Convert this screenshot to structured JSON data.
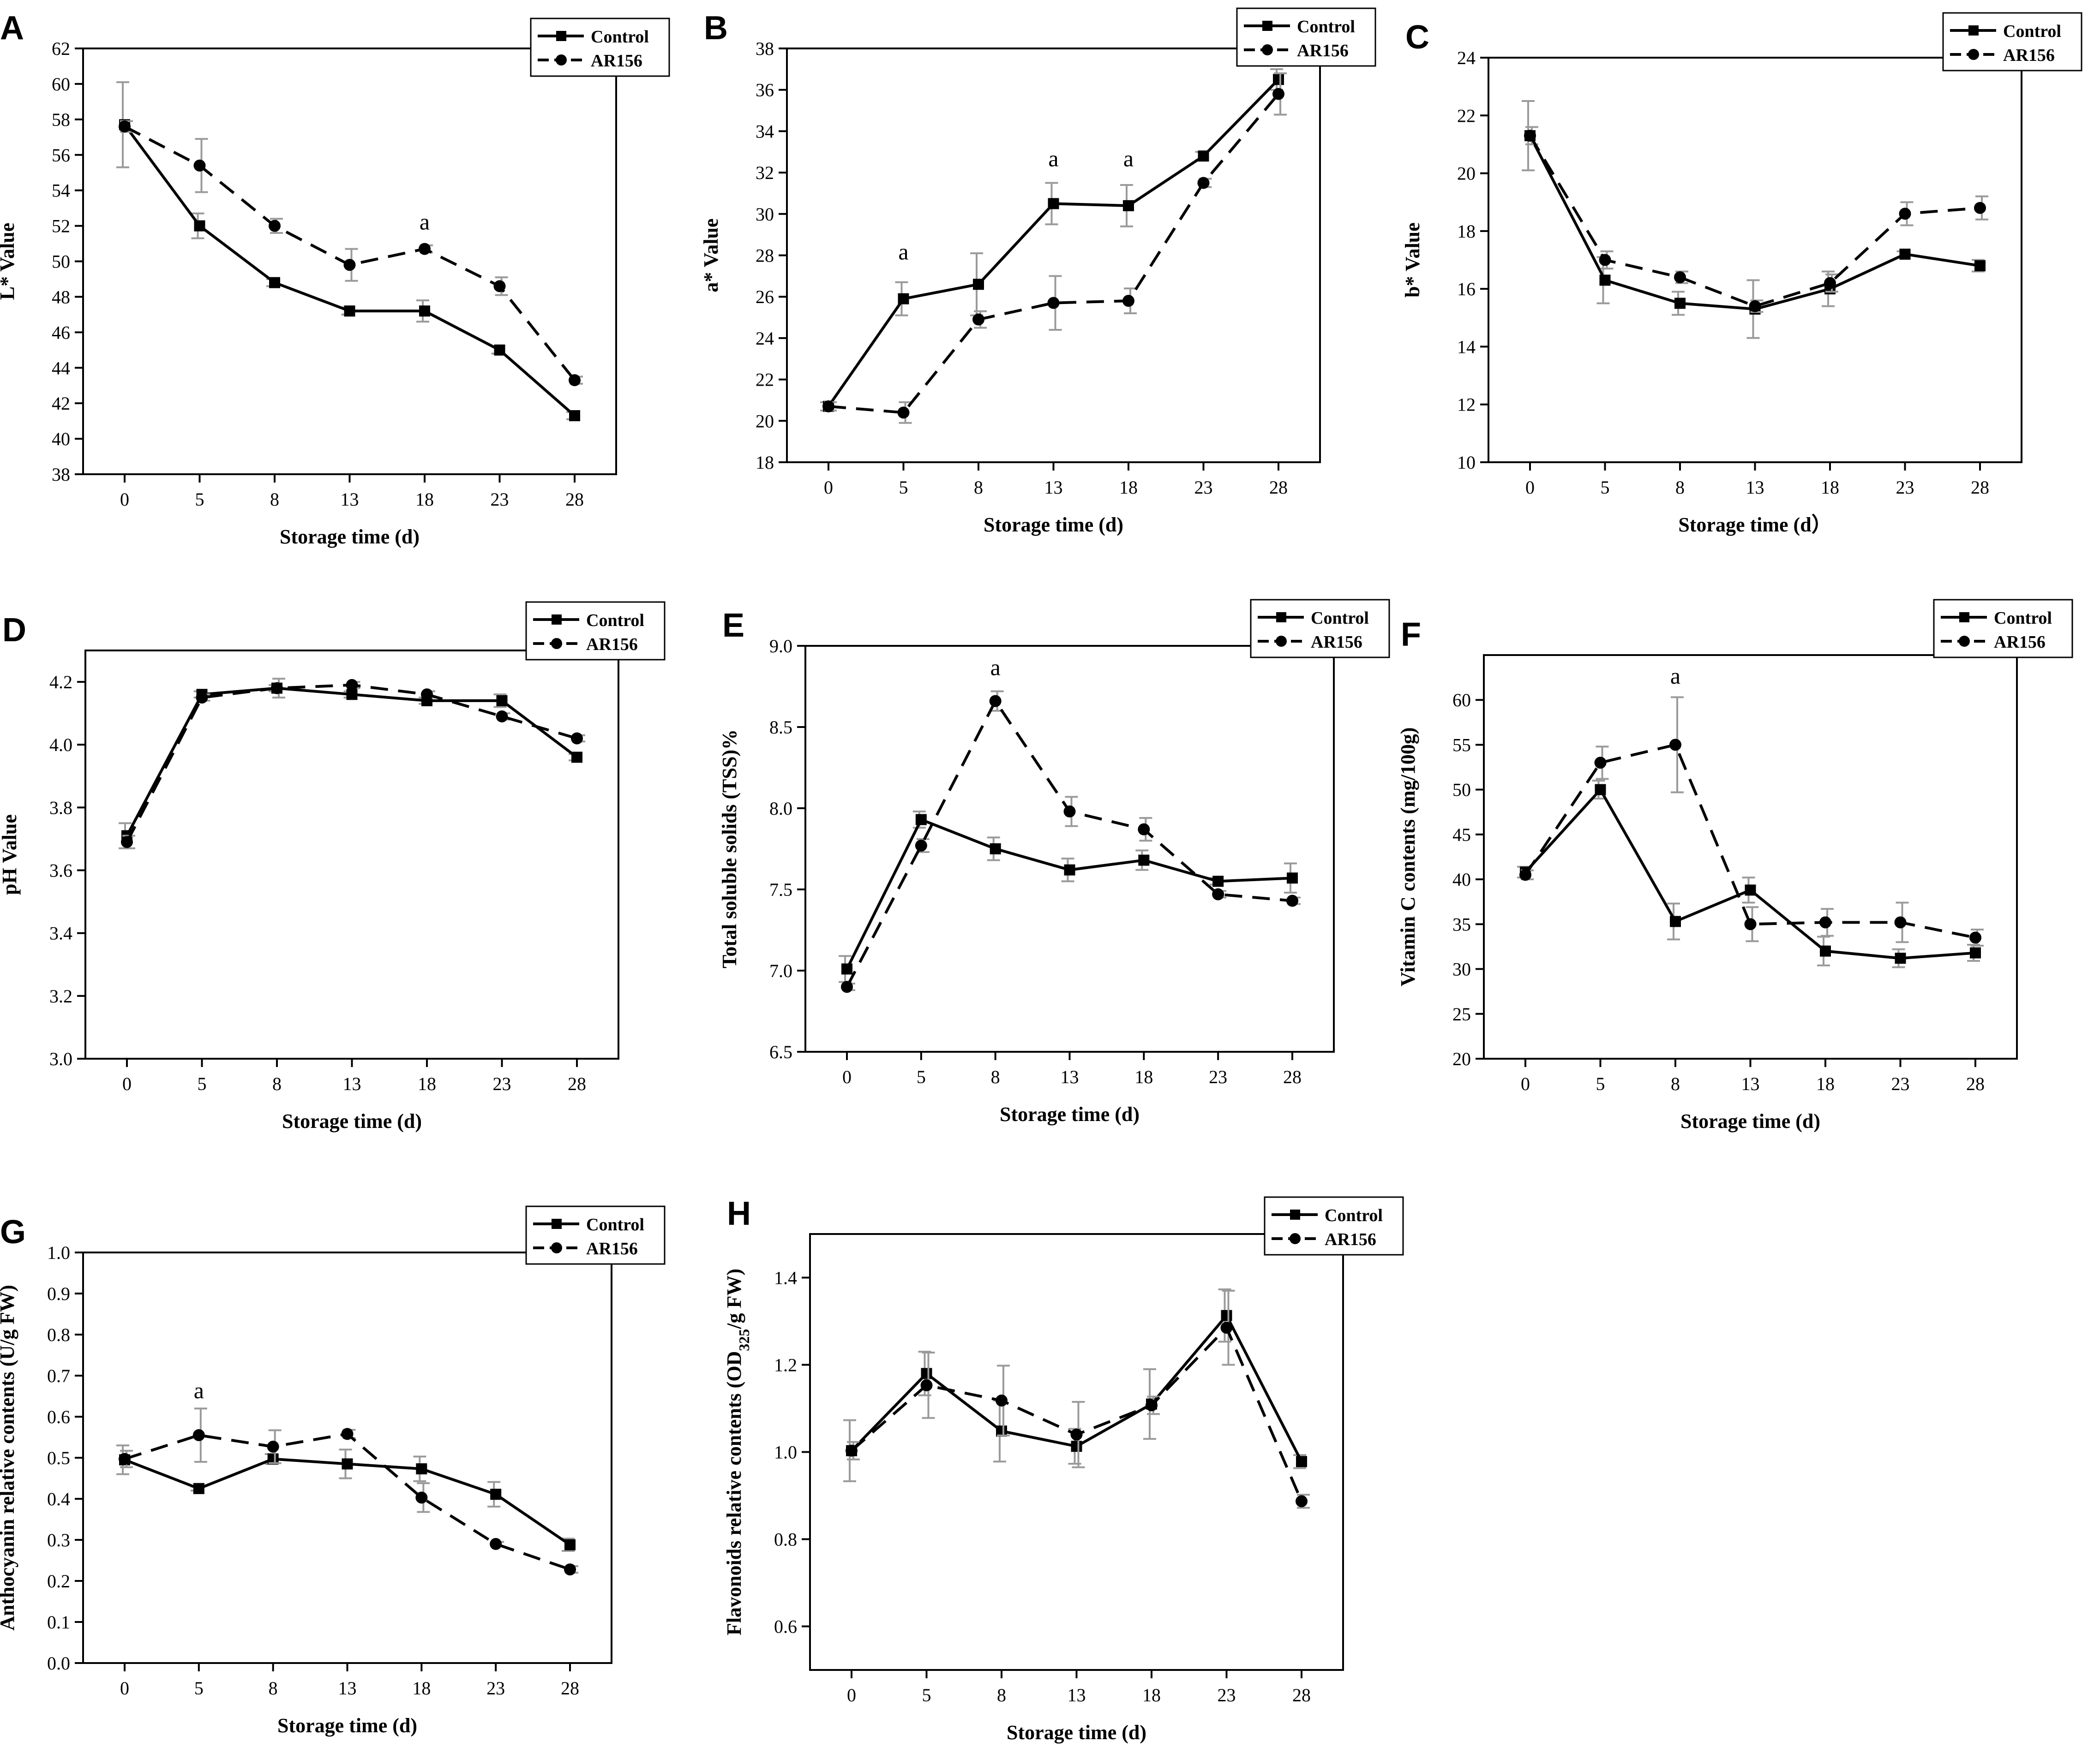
{
  "figure": {
    "legend_labels": [
      "Control",
      "AR156"
    ],
    "xlabel_default": "Storage time (d)",
    "x_ticks": [
      "0",
      "5",
      "8",
      "13",
      "18",
      "23",
      "28"
    ],
    "colors": {
      "line": "#000000",
      "error_bar": "#9a9a9a",
      "axis": "#000000",
      "background": "#ffffff"
    }
  },
  "chart_data": [
    {
      "panel": "A",
      "type": "line",
      "xlabel": "Storage time (d)",
      "ylabel": "L* Value",
      "categories": [
        "0",
        "5",
        "8",
        "13",
        "18",
        "23",
        "28"
      ],
      "ylim": [
        38,
        62
      ],
      "yticks": [
        38,
        40,
        42,
        44,
        46,
        48,
        50,
        52,
        54,
        56,
        58,
        60,
        62
      ],
      "legend": "top-right",
      "series": [
        {
          "name": "Control",
          "style": "solid",
          "marker": "square",
          "values": [
            57.7,
            52.0,
            48.8,
            47.2,
            47.2,
            45.0,
            41.3
          ],
          "errors": [
            2.4,
            0.7,
            0.2,
            0.2,
            0.6,
            0.2,
            0.2
          ]
        },
        {
          "name": "AR156",
          "style": "dashed",
          "marker": "circle",
          "values": [
            57.6,
            55.4,
            52.0,
            49.8,
            50.7,
            48.6,
            43.3
          ],
          "errors": [
            0.3,
            1.5,
            0.4,
            0.9,
            0.2,
            0.5,
            0.2
          ]
        }
      ],
      "annotations": [
        {
          "x": "18",
          "y": 51.8,
          "text": "a"
        }
      ]
    },
    {
      "panel": "B",
      "type": "line",
      "xlabel": "Storage time (d)",
      "ylabel": "a* Value",
      "categories": [
        "0",
        "5",
        "8",
        "13",
        "18",
        "23",
        "28"
      ],
      "ylim": [
        18,
        38
      ],
      "yticks": [
        18,
        20,
        22,
        24,
        26,
        28,
        30,
        32,
        34,
        36,
        38
      ],
      "legend": "top-right",
      "series": [
        {
          "name": "Control",
          "style": "solid",
          "marker": "square",
          "values": [
            20.7,
            25.9,
            26.6,
            30.5,
            30.4,
            32.8,
            36.5
          ],
          "errors": [
            0.2,
            0.8,
            1.5,
            1.0,
            1.0,
            0.2,
            0.5
          ]
        },
        {
          "name": "AR156",
          "style": "dashed",
          "marker": "circle",
          "values": [
            20.7,
            20.4,
            24.9,
            25.7,
            25.8,
            31.5,
            35.8
          ],
          "errors": [
            0.2,
            0.5,
            0.4,
            1.3,
            0.6,
            0.2,
            1.0
          ]
        }
      ],
      "annotations": [
        {
          "x": "5",
          "y": 27.8,
          "text": "a"
        },
        {
          "x": "13",
          "y": 32.3,
          "text": "a"
        },
        {
          "x": "18",
          "y": 32.3,
          "text": "a"
        }
      ]
    },
    {
      "panel": "C",
      "type": "line",
      "xlabel": "Storage time (d）",
      "ylabel": "b* Value",
      "categories": [
        "0",
        "5",
        "8",
        "13",
        "18",
        "23",
        "28"
      ],
      "ylim": [
        10,
        24
      ],
      "yticks": [
        10,
        12,
        14,
        16,
        18,
        20,
        22,
        24
      ],
      "legend": "top-right",
      "series": [
        {
          "name": "Control",
          "style": "solid",
          "marker": "square",
          "values": [
            21.3,
            16.3,
            15.5,
            15.3,
            16.0,
            17.2,
            16.8
          ],
          "errors": [
            1.2,
            0.8,
            0.4,
            1.0,
            0.6,
            0.1,
            0.2
          ]
        },
        {
          "name": "AR156",
          "style": "dashed",
          "marker": "circle",
          "values": [
            21.3,
            17.0,
            16.4,
            15.4,
            16.2,
            18.6,
            18.8
          ],
          "errors": [
            0.3,
            0.3,
            0.2,
            0.2,
            0.3,
            0.4,
            0.4
          ]
        }
      ],
      "annotations": []
    },
    {
      "panel": "D",
      "type": "line",
      "xlabel": "Storage time (d)",
      "ylabel": "pH Value",
      "categories": [
        "0",
        "5",
        "8",
        "13",
        "18",
        "23",
        "28"
      ],
      "ylim": [
        3.0,
        4.3
      ],
      "yticks": [
        3.0,
        3.2,
        3.4,
        3.6,
        3.8,
        4.0,
        4.2
      ],
      "legend": "top-right",
      "series": [
        {
          "name": "Control",
          "style": "solid",
          "marker": "square",
          "values": [
            3.71,
            4.16,
            4.18,
            4.16,
            4.14,
            4.14,
            3.96
          ],
          "errors": [
            0.04,
            0.01,
            0.01,
            0.01,
            0.01,
            0.02,
            0.01
          ]
        },
        {
          "name": "AR156",
          "style": "dashed",
          "marker": "circle",
          "values": [
            3.69,
            4.15,
            4.18,
            4.19,
            4.16,
            4.09,
            4.02
          ],
          "errors": [
            0.02,
            0.01,
            0.03,
            0.01,
            0.01,
            0.01,
            0.01
          ]
        }
      ],
      "annotations": []
    },
    {
      "panel": "E",
      "type": "line",
      "xlabel": "Storage time (d)",
      "ylabel": "Total soluble solids (TSS)%",
      "categories": [
        "0",
        "5",
        "8",
        "13",
        "18",
        "23",
        "28"
      ],
      "ylim": [
        6.5,
        9.0
      ],
      "yticks": [
        6.5,
        7.0,
        7.5,
        8.0,
        8.5,
        9.0
      ],
      "legend": "top-right",
      "series": [
        {
          "name": "Control",
          "style": "solid",
          "marker": "square",
          "values": [
            7.01,
            7.93,
            7.75,
            7.62,
            7.68,
            7.55,
            7.57
          ],
          "errors": [
            0.08,
            0.05,
            0.07,
            0.07,
            0.06,
            0.02,
            0.09
          ]
        },
        {
          "name": "AR156",
          "style": "dashed",
          "marker": "circle",
          "values": [
            6.9,
            7.77,
            8.66,
            7.98,
            7.87,
            7.47,
            7.43
          ],
          "errors": [
            0.02,
            0.04,
            0.06,
            0.09,
            0.07,
            0.02,
            0.02
          ]
        }
      ],
      "annotations": [
        {
          "x": "8",
          "y": 8.82,
          "text": "a"
        }
      ]
    },
    {
      "panel": "F",
      "type": "line",
      "xlabel": "Storage time (d)",
      "ylabel": "Vitamin C contents (mg/100g)",
      "categories": [
        "0",
        "5",
        "8",
        "13",
        "18",
        "23",
        "28"
      ],
      "ylim": [
        20,
        65
      ],
      "yticks": [
        20,
        25,
        30,
        35,
        40,
        45,
        50,
        55,
        60
      ],
      "legend": "top-right",
      "series": [
        {
          "name": "Control",
          "style": "solid",
          "marker": "square",
          "values": [
            40.8,
            50.0,
            35.3,
            38.8,
            32.0,
            31.2,
            31.8
          ],
          "errors": [
            0.6,
            1.0,
            2.0,
            1.4,
            1.6,
            1.0,
            0.9
          ]
        },
        {
          "name": "AR156",
          "style": "dashed",
          "marker": "circle",
          "values": [
            40.5,
            53.0,
            55.0,
            35.0,
            35.2,
            35.2,
            33.5
          ],
          "errors": [
            0.5,
            1.8,
            5.3,
            1.9,
            1.5,
            2.2,
            0.9
          ]
        }
      ],
      "annotations": [
        {
          "x": "8",
          "y": 61.8,
          "text": "a"
        }
      ]
    },
    {
      "panel": "G",
      "type": "line",
      "xlabel": "Storage time (d)",
      "ylabel": "Anthocyanin relative contents (U/g FW)",
      "categories": [
        "0",
        "5",
        "8",
        "13",
        "18",
        "23",
        "28"
      ],
      "ylim": [
        0.0,
        1.0
      ],
      "yticks": [
        0.0,
        0.1,
        0.2,
        0.3,
        0.4,
        0.5,
        0.6,
        0.7,
        0.8,
        0.9,
        1.0
      ],
      "legend": "top-right",
      "series": [
        {
          "name": "Control",
          "style": "solid",
          "marker": "square",
          "values": [
            0.495,
            0.425,
            0.497,
            0.485,
            0.473,
            0.411,
            0.288
          ],
          "errors": [
            0.035,
            0.005,
            0.012,
            0.035,
            0.03,
            0.03,
            0.015
          ]
        },
        {
          "name": "AR156",
          "style": "dashed",
          "marker": "circle",
          "values": [
            0.497,
            0.555,
            0.527,
            0.558,
            0.403,
            0.29,
            0.228
          ],
          "errors": [
            0.02,
            0.065,
            0.04,
            0.01,
            0.035,
            0.005,
            0.008
          ]
        }
      ],
      "annotations": [
        {
          "x": "5",
          "y": 0.645,
          "text": "a"
        }
      ]
    },
    {
      "panel": "H",
      "type": "line",
      "xlabel": "Storage time (d)",
      "ylabel": "Flavonoids relative contents (OD",
      "ylabel_sub": "325",
      "ylabel_tail": "/g FW)",
      "categories": [
        "0",
        "5",
        "8",
        "13",
        "18",
        "23",
        "28"
      ],
      "ylim": [
        0.5,
        1.5
      ],
      "yticks": [
        0.6,
        0.8,
        1.0,
        1.2,
        1.4
      ],
      "legend": "top-right",
      "series": [
        {
          "name": "Control",
          "style": "solid",
          "marker": "square",
          "values": [
            1.003,
            1.18,
            1.048,
            1.013,
            1.11,
            1.313,
            0.978
          ],
          "errors": [
            0.07,
            0.05,
            0.07,
            0.04,
            0.08,
            0.06,
            0.015
          ]
        },
        {
          "name": "AR156",
          "style": "dashed",
          "marker": "circle",
          "values": [
            1.003,
            1.153,
            1.118,
            1.04,
            1.107,
            1.285,
            0.887
          ],
          "errors": [
            0.02,
            0.075,
            0.08,
            0.075,
            0.02,
            0.085,
            0.015
          ]
        }
      ],
      "annotations": []
    }
  ]
}
